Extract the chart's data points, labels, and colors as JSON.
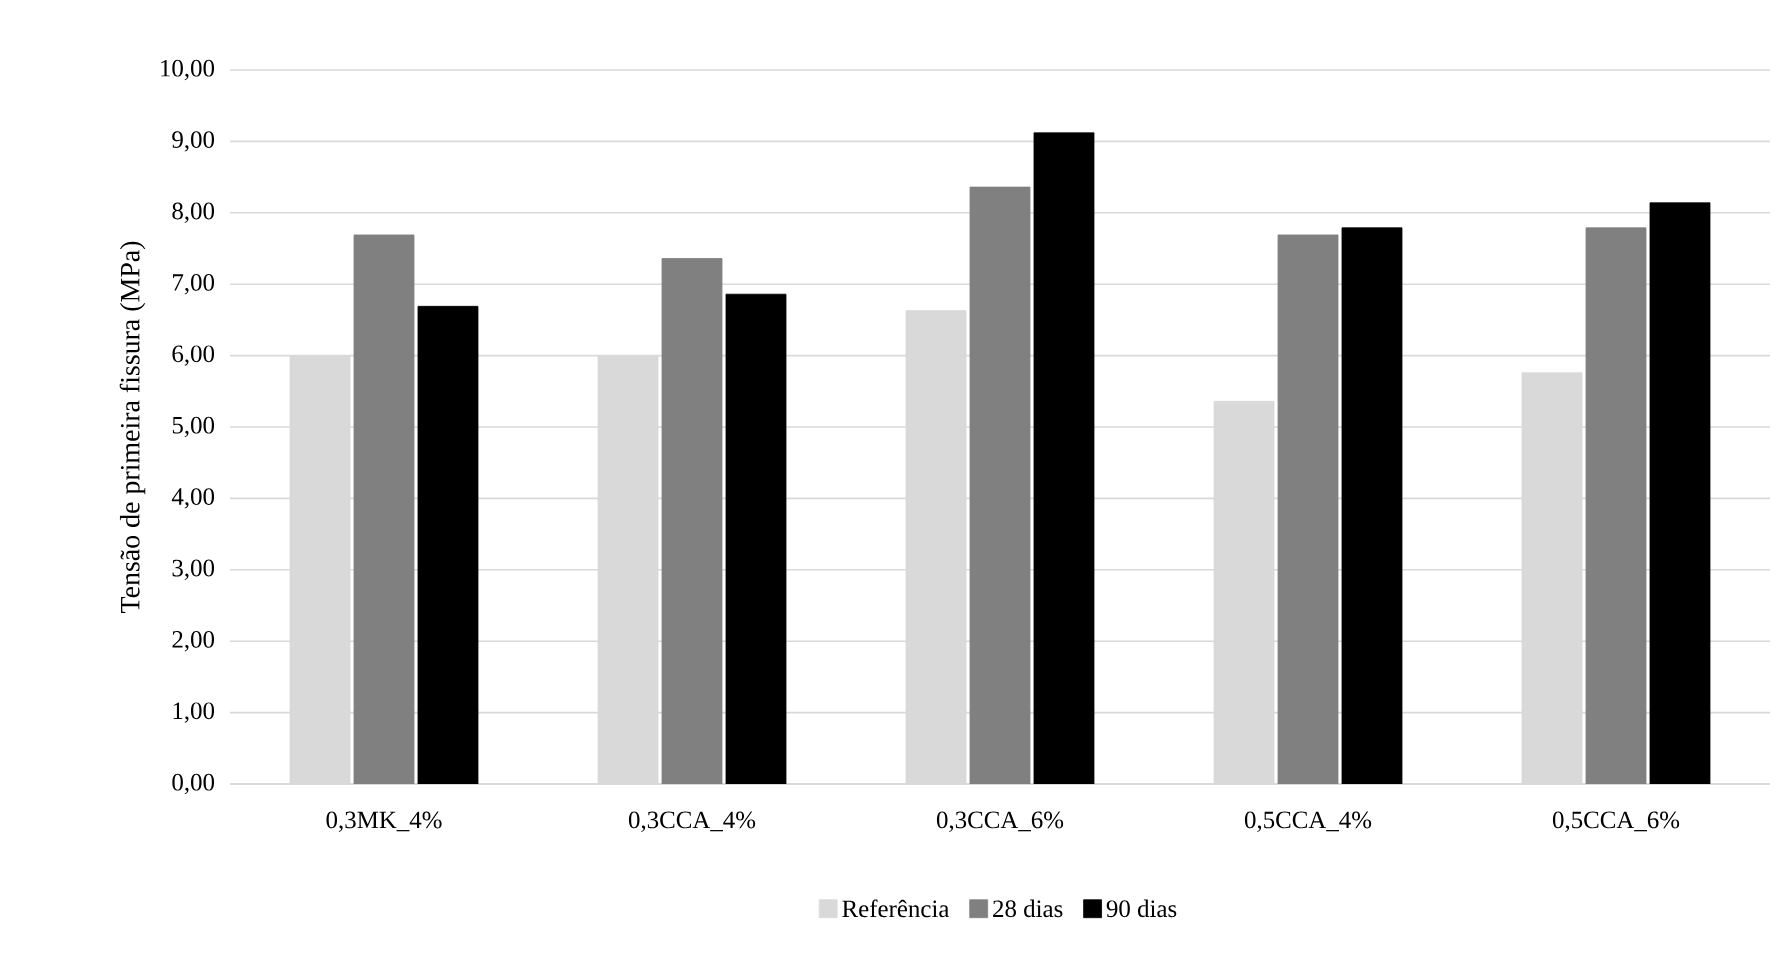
{
  "chart_data": {
    "type": "bar",
    "ylabel": "Tensão de primeira fissura (MPa)",
    "categories": [
      "0,3MK_4%",
      "0,3CCA_4%",
      "0,3CCA_6%",
      "0,5CCA_4%",
      "0,5CCA_6%"
    ],
    "series": [
      {
        "name": "Referência",
        "color": "#d9d9d9",
        "values": [
          6.0,
          6.0,
          6.63,
          5.36,
          5.76
        ]
      },
      {
        "name": "28 dias",
        "color": "#808080",
        "values": [
          7.69,
          7.36,
          8.36,
          7.69,
          7.79
        ]
      },
      {
        "name": "90 dias",
        "color": "#000000",
        "values": [
          6.69,
          6.86,
          9.12,
          7.79,
          8.14
        ]
      }
    ],
    "ylim": [
      0,
      10
    ],
    "yticks": [
      {
        "value": 0,
        "label": "0,00"
      },
      {
        "value": 1,
        "label": "1,00"
      },
      {
        "value": 2,
        "label": "2,00"
      },
      {
        "value": 3,
        "label": "3,00"
      },
      {
        "value": 4,
        "label": "4,00"
      },
      {
        "value": 5,
        "label": "5,00"
      },
      {
        "value": 6,
        "label": "6,00"
      },
      {
        "value": 7,
        "label": "7,00"
      },
      {
        "value": 8,
        "label": "8,00"
      },
      {
        "value": 9,
        "label": "9,00"
      },
      {
        "value": 10,
        "label": "10,00"
      }
    ],
    "grid": "y",
    "legend": "bottom"
  }
}
